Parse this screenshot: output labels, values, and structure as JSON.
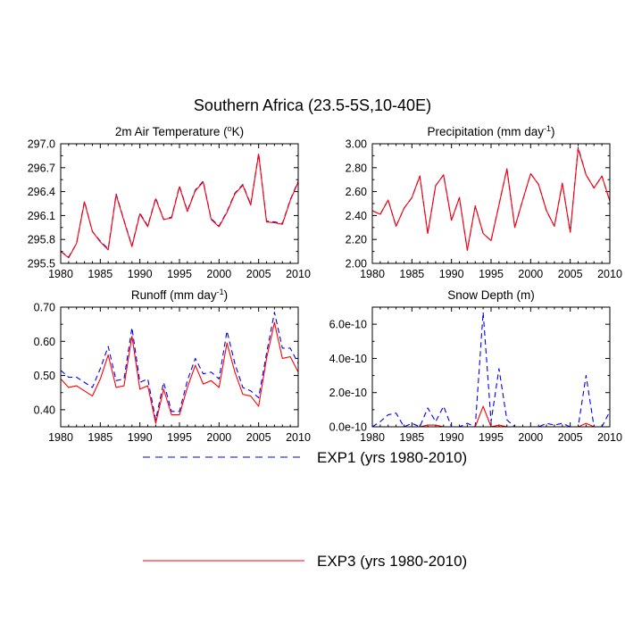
{
  "title": "Southern Africa (23.5-5S,10-40E)",
  "legend": {
    "position": "bottom-center",
    "items": [
      {
        "label": "EXP1 (yrs 1980-2010)",
        "color": "#0000ff",
        "dash": "dashed"
      },
      {
        "label": "EXP3 (yrs 1980-2010)",
        "color": "#ff0000",
        "dash": "solid"
      }
    ]
  },
  "chart_data": [
    {
      "type": "line",
      "title": "2m Air Temperature (",
      "title_sup": "o",
      "title_tail": "K)",
      "xlim": [
        1980,
        2010
      ],
      "xticks": [
        1980,
        1985,
        1990,
        1995,
        2000,
        2005,
        2010
      ],
      "xtick_labels": [
        "1980",
        "1985",
        "1990",
        "1995",
        "2000",
        "2005",
        "2010"
      ],
      "ylim": [
        295.5,
        297.0
      ],
      "yticks": [
        295.5,
        295.8,
        296.1,
        296.4,
        296.7,
        297.0
      ],
      "ytick_labels": [
        "295.5",
        "295.8",
        "296.1",
        "296.4",
        "296.7",
        "297.0"
      ],
      "x": [
        1980,
        1981,
        1982,
        1983,
        1984,
        1985,
        1986,
        1987,
        1988,
        1989,
        1990,
        1991,
        1992,
        1993,
        1994,
        1995,
        1996,
        1997,
        1998,
        1999,
        2000,
        2001,
        2002,
        2003,
        2004,
        2005,
        2006,
        2007,
        2008,
        2009,
        2010
      ],
      "series": [
        {
          "name": "EXP1",
          "values": [
            295.65,
            295.58,
            295.75,
            296.28,
            295.9,
            295.78,
            295.68,
            296.37,
            296.04,
            295.72,
            296.13,
            295.97,
            296.32,
            296.05,
            296.08,
            296.47,
            296.16,
            296.42,
            296.53,
            296.06,
            295.97,
            296.15,
            296.38,
            296.49,
            296.24,
            296.88,
            296.03,
            296.02,
            296.0,
            296.3,
            296.53
          ]
        },
        {
          "name": "EXP3",
          "values": [
            295.65,
            295.57,
            295.75,
            296.27,
            295.9,
            295.77,
            295.67,
            296.36,
            296.03,
            295.71,
            296.12,
            295.96,
            296.31,
            296.05,
            296.07,
            296.46,
            296.15,
            296.41,
            296.52,
            296.05,
            295.96,
            296.14,
            296.37,
            296.48,
            296.23,
            296.87,
            296.02,
            296.01,
            295.99,
            296.29,
            296.52
          ]
        }
      ]
    },
    {
      "type": "line",
      "title": "Precipitation (mm day",
      "title_sup": "-1",
      "title_tail": ")",
      "xlim": [
        1980,
        2010
      ],
      "xticks": [
        1980,
        1985,
        1990,
        1995,
        2000,
        2005,
        2010
      ],
      "xtick_labels": [
        "1980",
        "1985",
        "1990",
        "1995",
        "2000",
        "2005",
        "2010"
      ],
      "ylim": [
        2.0,
        3.0
      ],
      "yticks": [
        2.0,
        2.2,
        2.4,
        2.6,
        2.8,
        3.0
      ],
      "ytick_labels": [
        "2.00",
        "2.20",
        "2.40",
        "2.60",
        "2.80",
        "3.00"
      ],
      "x": [
        1980,
        1981,
        1982,
        1983,
        1984,
        1985,
        1986,
        1987,
        1988,
        1989,
        1990,
        1991,
        1992,
        1993,
        1994,
        1995,
        1996,
        1997,
        1998,
        1999,
        2000,
        2001,
        2002,
        2003,
        2004,
        2005,
        2006,
        2007,
        2008,
        2009,
        2010
      ],
      "series": [
        {
          "name": "EXP1",
          "values": [
            2.44,
            2.41,
            2.53,
            2.31,
            2.46,
            2.55,
            2.73,
            2.25,
            2.65,
            2.74,
            2.36,
            2.55,
            2.11,
            2.48,
            2.25,
            2.19,
            2.49,
            2.79,
            2.3,
            2.53,
            2.75,
            2.66,
            2.44,
            2.31,
            2.67,
            2.26,
            2.97,
            2.74,
            2.63,
            2.73,
            2.52
          ]
        },
        {
          "name": "EXP3",
          "values": [
            2.44,
            2.41,
            2.53,
            2.31,
            2.46,
            2.55,
            2.73,
            2.25,
            2.65,
            2.74,
            2.36,
            2.55,
            2.11,
            2.48,
            2.25,
            2.19,
            2.49,
            2.79,
            2.3,
            2.53,
            2.75,
            2.66,
            2.44,
            2.31,
            2.67,
            2.26,
            2.96,
            2.74,
            2.63,
            2.73,
            2.52
          ]
        }
      ]
    },
    {
      "type": "line",
      "title": "Runoff (mm day",
      "title_sup": "-1",
      "title_tail": ")",
      "xlim": [
        1980,
        2010
      ],
      "xticks": [
        1980,
        1985,
        1990,
        1995,
        2000,
        2005,
        2010
      ],
      "xtick_labels": [
        "1980",
        "1985",
        "1990",
        "1995",
        "2000",
        "2005",
        "2010"
      ],
      "ylim": [
        0.35,
        0.7
      ],
      "yticks": [
        0.4,
        0.5,
        0.6,
        0.7
      ],
      "ytick_labels": [
        "0.40",
        "0.50",
        "0.60",
        "0.70"
      ],
      "x": [
        1980,
        1981,
        1982,
        1983,
        1984,
        1985,
        1986,
        1987,
        1988,
        1989,
        1990,
        1991,
        1992,
        1993,
        1994,
        1995,
        1996,
        1997,
        1998,
        1999,
        2000,
        2001,
        2002,
        2003,
        2004,
        2005,
        2006,
        2007,
        2008,
        2009,
        2010
      ],
      "series": [
        {
          "name": "EXP1",
          "values": [
            0.515,
            0.495,
            0.495,
            0.48,
            0.465,
            0.52,
            0.585,
            0.485,
            0.49,
            0.64,
            0.48,
            0.49,
            0.37,
            0.48,
            0.395,
            0.395,
            0.485,
            0.55,
            0.505,
            0.51,
            0.49,
            0.63,
            0.535,
            0.465,
            0.455,
            0.435,
            0.565,
            0.685,
            0.58,
            0.58,
            0.535
          ]
        },
        {
          "name": "EXP3",
          "values": [
            0.49,
            0.465,
            0.47,
            0.455,
            0.44,
            0.49,
            0.56,
            0.465,
            0.47,
            0.615,
            0.46,
            0.47,
            0.36,
            0.46,
            0.385,
            0.385,
            0.465,
            0.53,
            0.475,
            0.485,
            0.465,
            0.595,
            0.51,
            0.445,
            0.44,
            0.41,
            0.55,
            0.655,
            0.55,
            0.555,
            0.51
          ]
        }
      ]
    },
    {
      "type": "line",
      "title": "Snow Depth (m)",
      "title_sup": "",
      "title_tail": "",
      "xlim": [
        1980,
        2010
      ],
      "xticks": [
        1980,
        1985,
        1990,
        1995,
        2000,
        2005,
        2010
      ],
      "xtick_labels": [
        "1980",
        "1985",
        "1990",
        "1995",
        "2000",
        "2005",
        "2010"
      ],
      "ylim": [
        0.0,
        7e-10
      ],
      "yticks": [
        0.0,
        2e-10,
        4e-10,
        6e-10
      ],
      "ytick_labels": [
        "0.0e-10",
        "2.0e-10",
        "4.0e-10",
        "6.0e-10"
      ],
      "x": [
        1980,
        1981,
        1982,
        1983,
        1984,
        1985,
        1986,
        1987,
        1988,
        1989,
        1990,
        1991,
        1992,
        1993,
        1994,
        1995,
        1996,
        1997,
        1998,
        1999,
        2000,
        2001,
        2002,
        2003,
        2004,
        2005,
        2006,
        2007,
        2008,
        2009,
        2010
      ],
      "series": [
        {
          "name": "EXP1",
          "values": [
            0.0,
            3e-11,
            7e-11,
            8e-11,
            0.0,
            2e-11,
            0.0,
            1.1e-10,
            3e-11,
            1.2e-10,
            0.0,
            0.0,
            2e-11,
            0.0,
            6.7e-10,
            3e-11,
            3.4e-10,
            4e-11,
            0.0,
            0.0,
            0.0,
            0.0,
            2e-11,
            1e-11,
            2e-11,
            0.0,
            0.0,
            3e-10,
            0.0,
            0.0,
            9e-11
          ]
        },
        {
          "name": "EXP3",
          "values": [
            0.0,
            0.0,
            0.0,
            0.0,
            0.0,
            0.0,
            0.0,
            1e-11,
            1e-11,
            0.0,
            0.0,
            0.0,
            0.0,
            0.0,
            1.2e-10,
            0.0,
            1e-11,
            0.0,
            0.0,
            0.0,
            0.0,
            0.0,
            0.0,
            0.0,
            0.0,
            0.0,
            0.0,
            2e-11,
            0.0,
            0.0,
            0.0
          ]
        }
      ]
    }
  ]
}
